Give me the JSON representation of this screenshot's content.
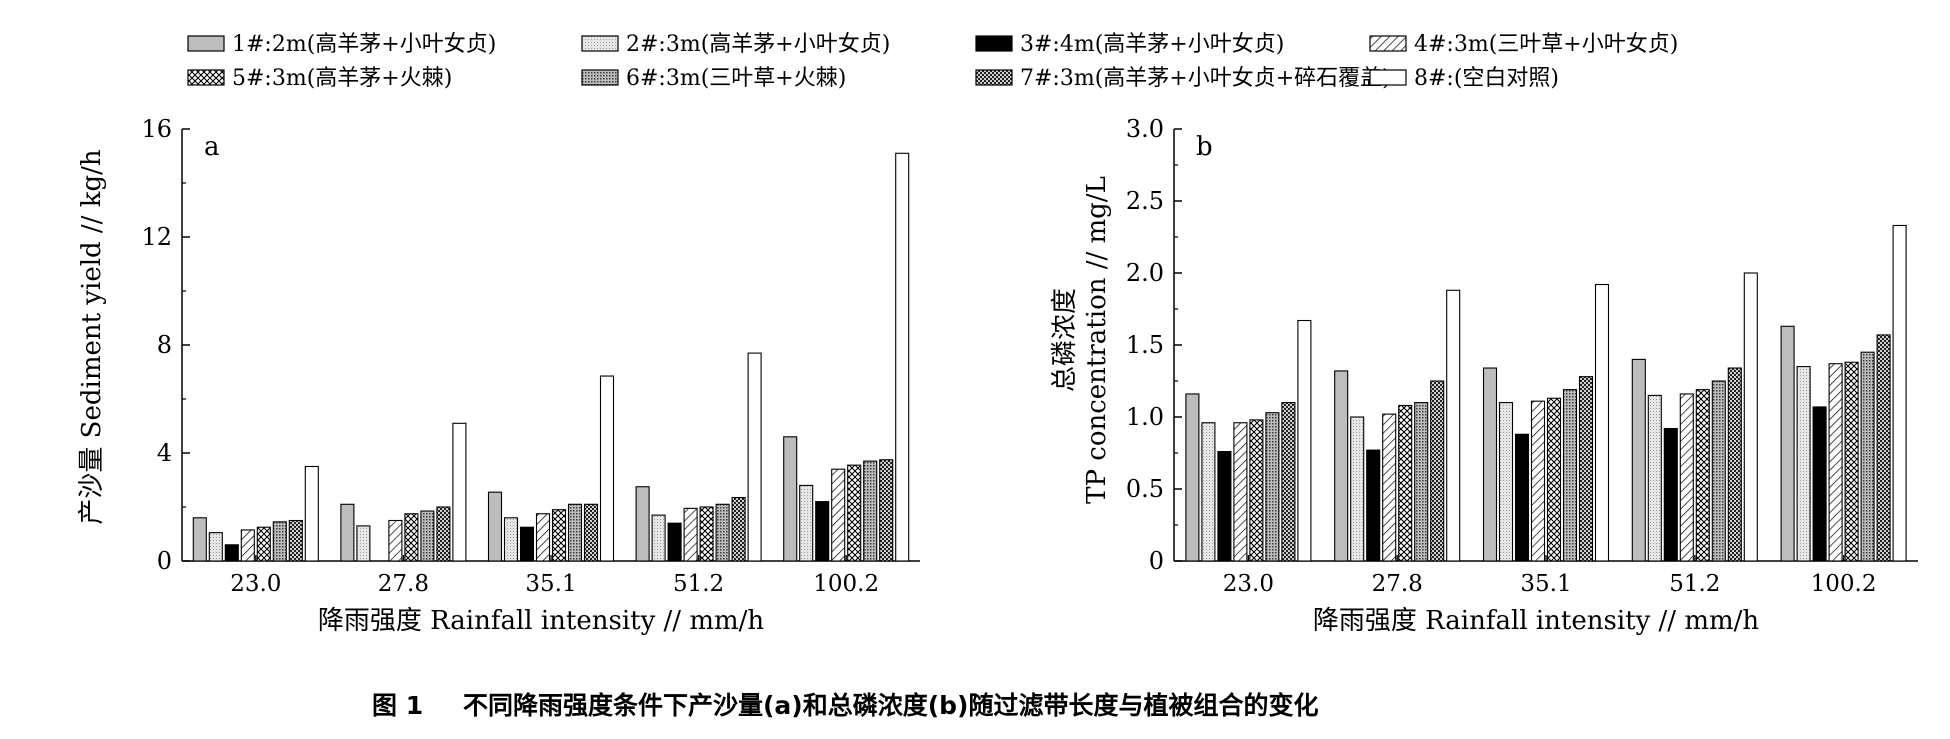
{
  "legend": [
    {
      "label": "1#:2m(高羊茅+小叶女贞)",
      "pattern": "gray"
    },
    {
      "label": "2#:3m(高羊茅+小叶女贞)",
      "pattern": "lightgray"
    },
    {
      "label": "3#:4m(高羊茅+小叶女贞)",
      "pattern": "black"
    },
    {
      "label": "4#:3m(三叶草+小叶女贞)",
      "pattern": "diag"
    },
    {
      "label": "5#:3m(高羊茅+火棘)",
      "pattern": "cross"
    },
    {
      "label": "6#:3m(三叶草+火棘)",
      "pattern": "dots"
    },
    {
      "label": "7#:3m(高羊茅+小叶女贞+碎石覆盖)",
      "pattern": "check"
    },
    {
      "label": "8#:(空白对照)",
      "pattern": "white"
    }
  ],
  "caption": {
    "number": "图 1",
    "text": "不同降雨强度条件下产沙量(a)和总磷浓度(b)随过滤带长度与植被组合的变化"
  },
  "chart_data": [
    {
      "type": "bar",
      "panel_label": "a",
      "xlabel": "降雨强度 Rainfall intensity // mm/h",
      "ylabel": "产沙量 Sediment yield // kg/h",
      "categories": [
        "23.0",
        "27.8",
        "35.1",
        "51.2",
        "100.2"
      ],
      "ylim": [
        0,
        16
      ],
      "yticks": [
        0,
        4,
        8,
        12,
        16
      ],
      "ytick_labels": [
        "0",
        "4",
        "8",
        "12",
        "16"
      ],
      "series": [
        {
          "name": "1#:2m(高羊茅+小叶女贞)",
          "values": [
            1.6,
            2.1,
            2.55,
            2.75,
            4.6
          ]
        },
        {
          "name": "2#:3m(高羊茅+小叶女贞)",
          "values": [
            1.05,
            1.3,
            1.6,
            1.7,
            2.8
          ]
        },
        {
          "name": "3#:4m(高羊茅+小叶女贞)",
          "values": [
            0.6,
            0.0,
            1.25,
            1.4,
            2.2
          ]
        },
        {
          "name": "4#:3m(三叶草+小叶女贞)",
          "values": [
            1.15,
            1.5,
            1.75,
            1.95,
            3.4
          ]
        },
        {
          "name": "5#:3m(高羊茅+火棘)",
          "values": [
            1.25,
            1.75,
            1.9,
            2.0,
            3.55
          ]
        },
        {
          "name": "6#:3m(三叶草+火棘)",
          "values": [
            1.45,
            1.85,
            2.1,
            2.1,
            3.7
          ]
        },
        {
          "name": "7#:3m(高羊茅+小叶女贞+碎石覆盖)",
          "values": [
            1.5,
            2.0,
            2.1,
            2.35,
            3.75
          ]
        },
        {
          "name": "8#:(空白对照)",
          "values": [
            3.5,
            5.1,
            6.85,
            7.7,
            15.1
          ]
        }
      ]
    },
    {
      "type": "bar",
      "panel_label": "b",
      "xlabel": "降雨强度 Rainfall intensity // mm/h",
      "ylabel": "总磷浓度",
      "ylabel2": "TP concentration // mg/L",
      "categories": [
        "23.0",
        "27.8",
        "35.1",
        "51.2",
        "100.2"
      ],
      "ylim": [
        0,
        3.0
      ],
      "yticks": [
        0,
        0.5,
        1.0,
        1.5,
        2.0,
        2.5,
        3.0
      ],
      "ytick_labels": [
        "0",
        "0.5",
        "1.0",
        "1.5",
        "2.0",
        "2.5",
        "3.0"
      ],
      "series": [
        {
          "name": "1#:2m(高羊茅+小叶女贞)",
          "values": [
            1.16,
            1.32,
            1.34,
            1.4,
            1.63
          ]
        },
        {
          "name": "2#:3m(高羊茅+小叶女贞)",
          "values": [
            0.96,
            1.0,
            1.1,
            1.15,
            1.35
          ]
        },
        {
          "name": "3#:4m(高羊茅+小叶女贞)",
          "values": [
            0.76,
            0.77,
            0.88,
            0.92,
            1.07
          ]
        },
        {
          "name": "4#:3m(三叶草+小叶女贞)",
          "values": [
            0.96,
            1.02,
            1.11,
            1.16,
            1.37
          ]
        },
        {
          "name": "5#:3m(高羊茅+火棘)",
          "values": [
            0.98,
            1.08,
            1.13,
            1.19,
            1.38
          ]
        },
        {
          "name": "6#:3m(三叶草+火棘)",
          "values": [
            1.03,
            1.1,
            1.19,
            1.25,
            1.45
          ]
        },
        {
          "name": "7#:3m(高羊茅+小叶女贞+碎石覆盖)",
          "values": [
            1.1,
            1.25,
            1.28,
            1.34,
            1.57
          ]
        },
        {
          "name": "8#:(空白对照)",
          "values": [
            1.67,
            1.88,
            1.92,
            2.0,
            2.33
          ]
        }
      ]
    }
  ]
}
